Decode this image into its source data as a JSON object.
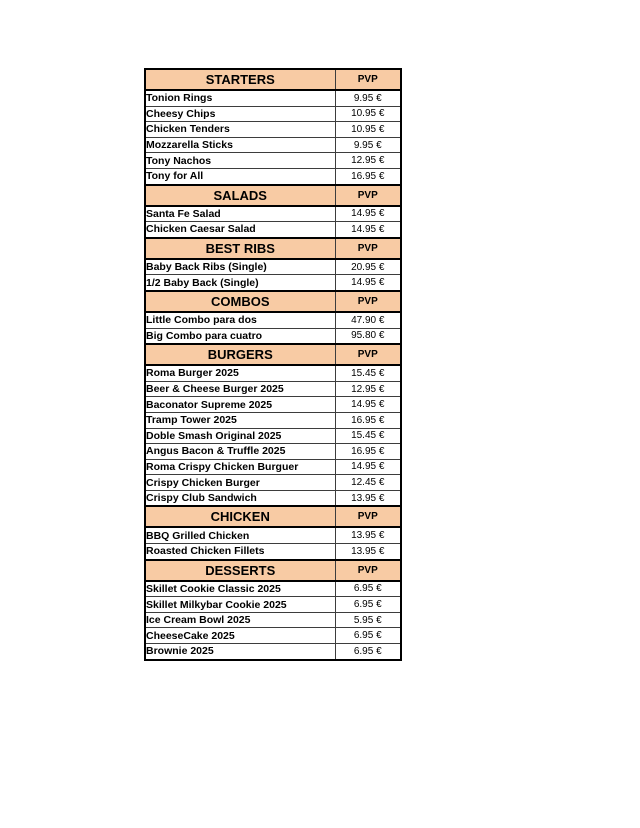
{
  "page": {
    "background": "#ffffff"
  },
  "table": {
    "header_bg": "#F8CBA4",
    "border_color": "#000000",
    "currency_suffix": "€",
    "sections": [
      {
        "title": "STARTERS",
        "price_header": "PVP",
        "items": [
          {
            "name": "Tonion Rings",
            "price": "9.95 €"
          },
          {
            "name": "Cheesy Chips",
            "price": "10.95 €"
          },
          {
            "name": "Chicken Tenders",
            "price": "10.95 €"
          },
          {
            "name": "Mozzarella Sticks",
            "price": "9.95 €"
          },
          {
            "name": "Tony Nachos",
            "price": "12.95 €"
          },
          {
            "name": "Tony for All",
            "price": "16.95 €"
          }
        ]
      },
      {
        "title": "SALADS",
        "price_header": "PVP",
        "items": [
          {
            "name": "Santa Fe Salad",
            "price": "14.95 €"
          },
          {
            "name": "Chicken Caesar Salad",
            "price": "14.95 €"
          }
        ]
      },
      {
        "title": "BEST RIBS",
        "price_header": "PVP",
        "items": [
          {
            "name": "Baby Back Ribs (Single)",
            "price": "20.95 €"
          },
          {
            "name": "1/2 Baby Back (Single)",
            "price": "14.95 €"
          }
        ]
      },
      {
        "title": "COMBOS",
        "price_header": "PVP",
        "items": [
          {
            "name": "Little Combo para dos",
            "price": "47.90 €"
          },
          {
            "name": "Big Combo para cuatro",
            "price": "95.80 €"
          }
        ]
      },
      {
        "title": "BURGERS",
        "price_header": "PVP",
        "items": [
          {
            "name": "Roma Burger 2025",
            "price": "15.45 €"
          },
          {
            "name": "Beer & Cheese Burger 2025",
            "price": "12.95 €"
          },
          {
            "name": "Baconator Supreme 2025",
            "price": "14.95 €"
          },
          {
            "name": "Tramp Tower 2025",
            "price": "16.95 €"
          },
          {
            "name": "Doble Smash Original 2025",
            "price": "15.45 €"
          },
          {
            "name": "Angus Bacon & Truffle 2025",
            "price": "16.95 €"
          },
          {
            "name": "Roma Crispy Chicken Burguer",
            "price": "14.95 €"
          },
          {
            "name": "Crispy Chicken Burger",
            "price": "12.45 €"
          },
          {
            "name": "Crispy Club Sandwich",
            "price": "13.95 €"
          }
        ]
      },
      {
        "title": "CHICKEN",
        "price_header": "PVP",
        "items": [
          {
            "name": "BBQ Grilled Chicken",
            "price": "13.95 €"
          },
          {
            "name": "Roasted Chicken Fillets",
            "price": "13.95 €"
          }
        ]
      },
      {
        "title": "DESSERTS",
        "price_header": "PVP",
        "items": [
          {
            "name": "Skillet Cookie Classic 2025",
            "price": "6.95 €"
          },
          {
            "name": "Skillet Milkybar Cookie 2025",
            "price": "6.95 €"
          },
          {
            "name": "Ice Cream Bowl 2025",
            "price": "5.95 €"
          },
          {
            "name": "CheeseCake 2025",
            "price": "6.95 €"
          },
          {
            "name": "Brownie 2025",
            "price": "6.95 €"
          }
        ]
      }
    ]
  }
}
